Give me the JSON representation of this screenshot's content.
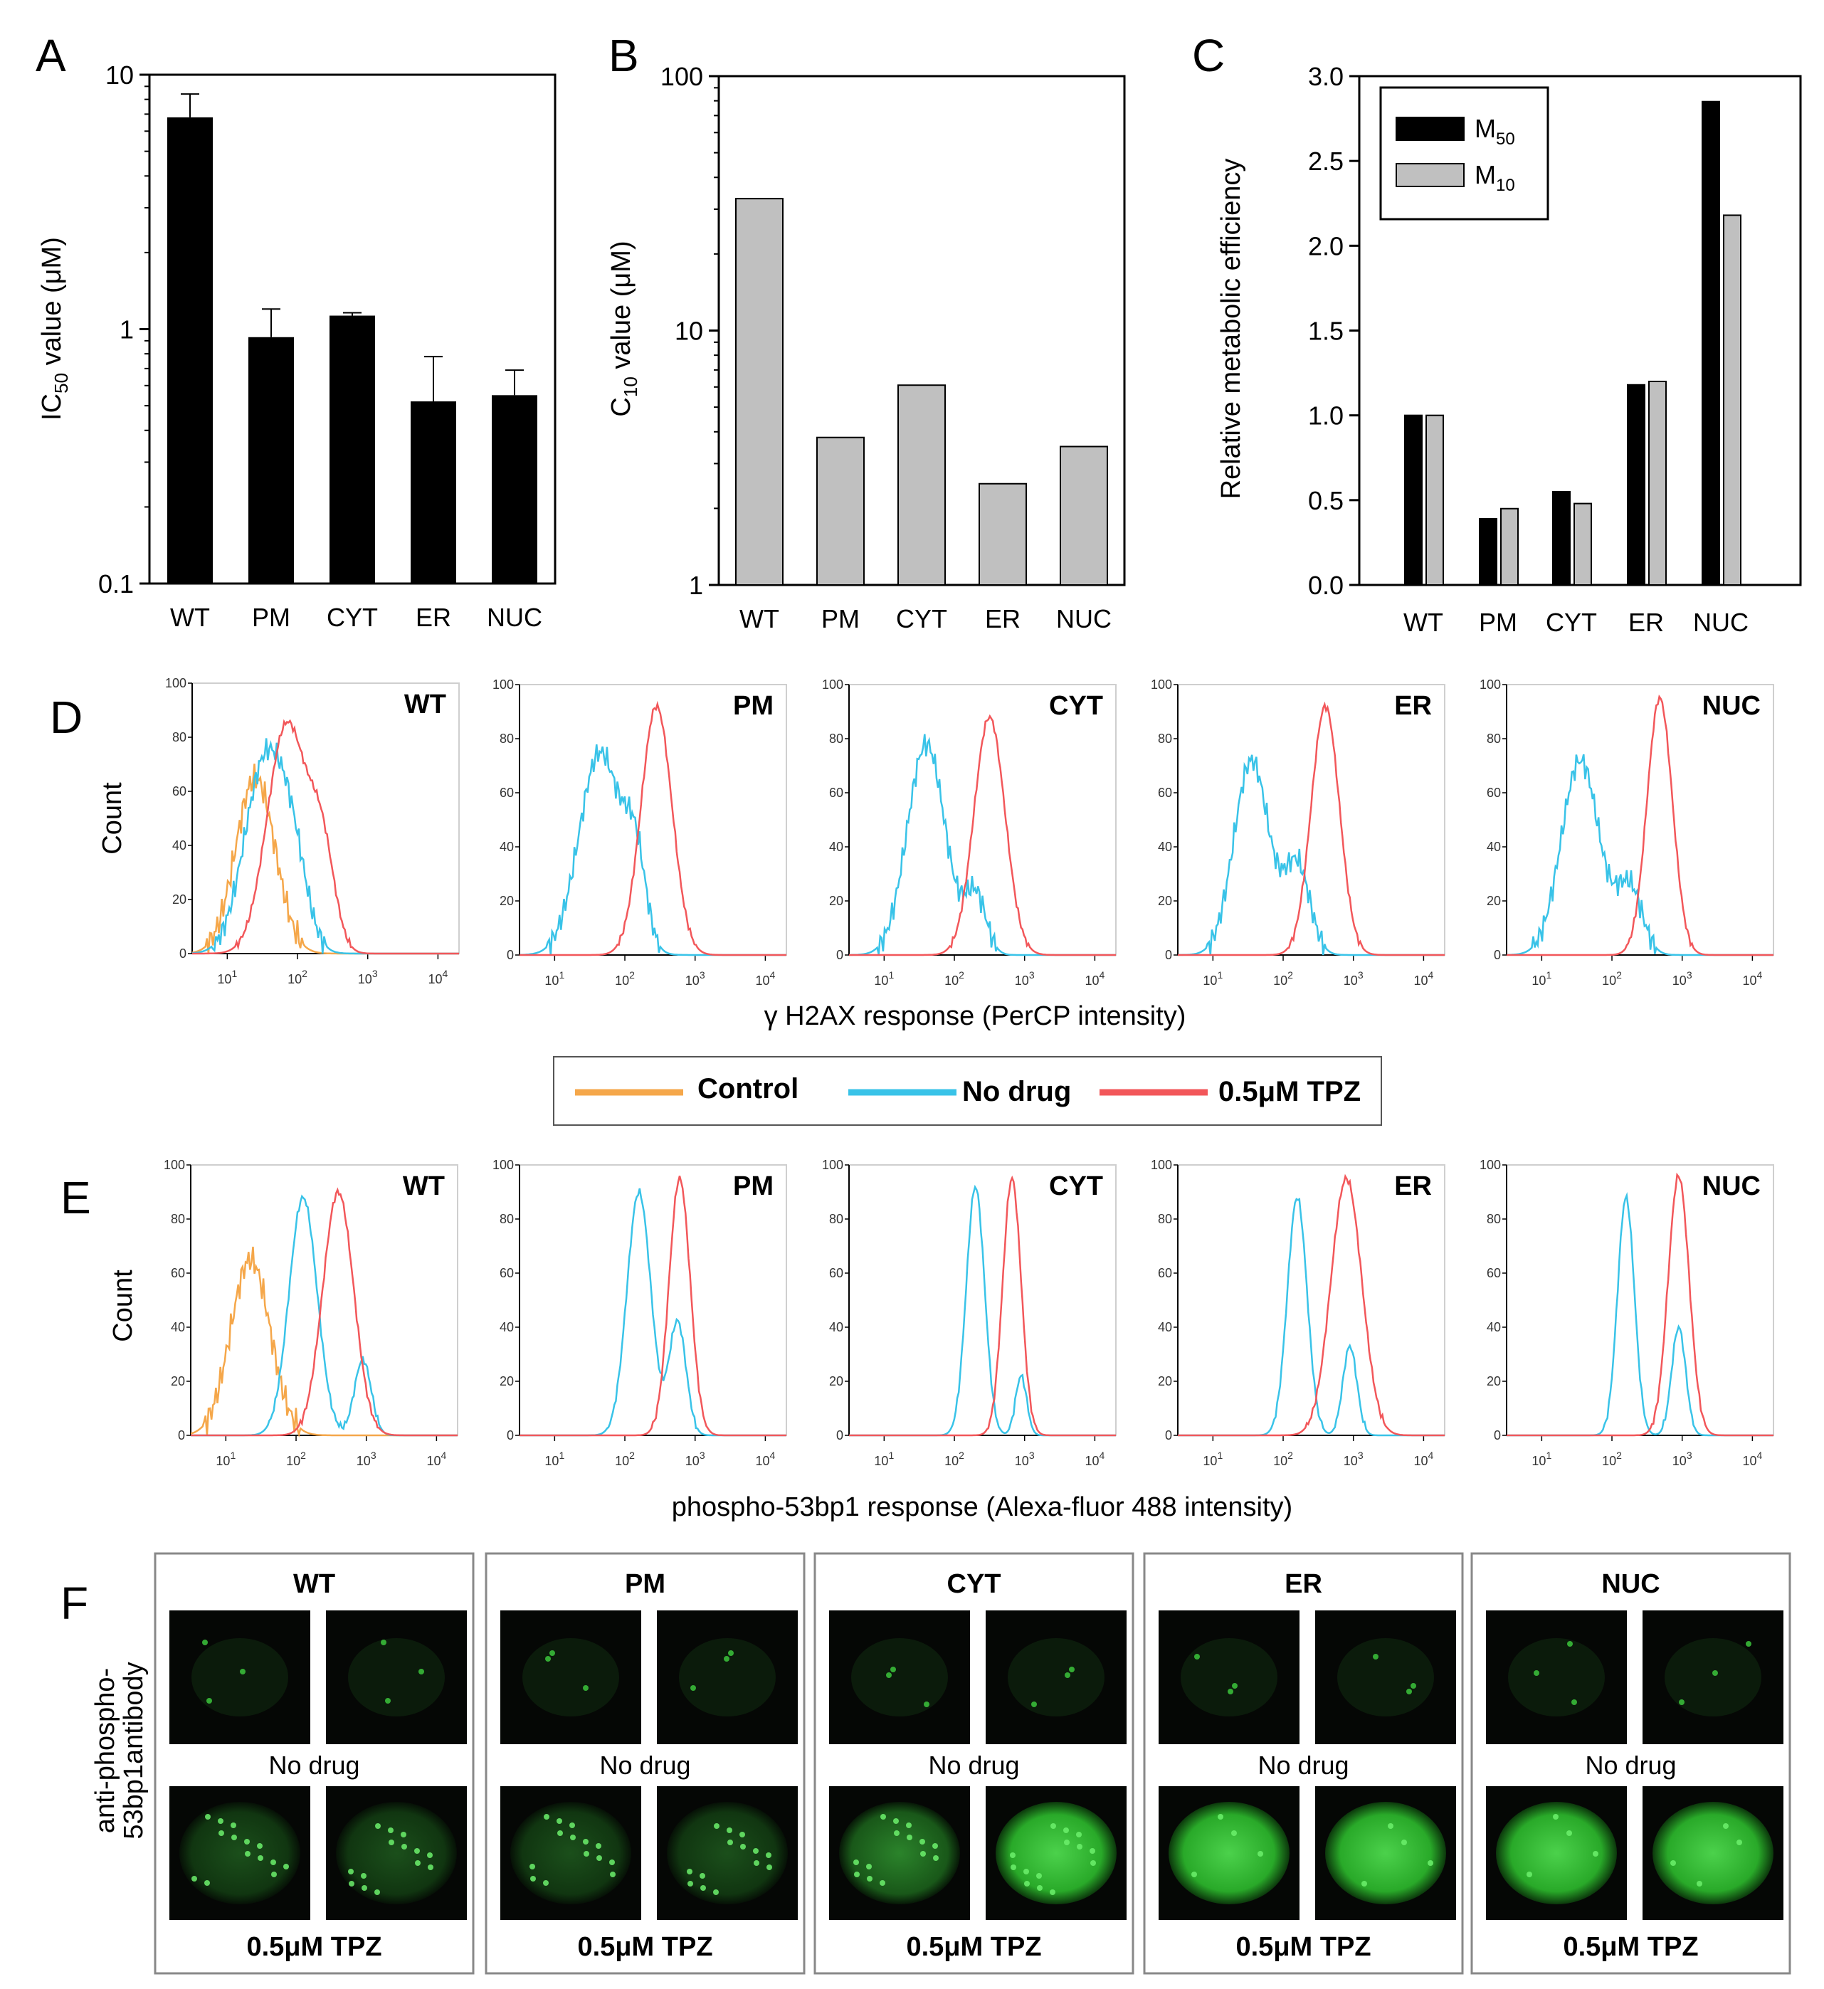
{
  "panel_labels": [
    "A",
    "B",
    "C",
    "D",
    "E",
    "F"
  ],
  "chart_data": [
    {
      "id": "A",
      "type": "bar",
      "scale": "log",
      "categories": [
        "WT",
        "PM",
        "CYT",
        "ER",
        "NUC"
      ],
      "values": [
        6.8,
        0.93,
        1.13,
        0.52,
        0.55
      ],
      "errors": [
        8.4,
        1.2,
        1.16,
        0.78,
        0.69
      ],
      "ylabel_main": "IC",
      "ylabel_sub": "50",
      "ylabel_rest": " value (μM)",
      "yticks": [
        "0.1",
        "1",
        "10"
      ],
      "ylim": [
        0.1,
        10
      ],
      "color": "#000000"
    },
    {
      "id": "B",
      "type": "bar",
      "scale": "log",
      "categories": [
        "WT",
        "PM",
        "CYT",
        "ER",
        "NUC"
      ],
      "values": [
        33,
        3.8,
        6.1,
        2.5,
        3.5
      ],
      "ylabel_main": "C",
      "ylabel_sub": "10",
      "ylabel_rest": " value (μM)",
      "yticks": [
        "1",
        "10",
        "100"
      ],
      "ylim": [
        1,
        100
      ],
      "color": "#c0c0c0"
    },
    {
      "id": "C",
      "type": "bar",
      "scale": "linear",
      "categories": [
        "WT",
        "PM",
        "CYT",
        "ER",
        "NUC"
      ],
      "series": [
        {
          "name_main": "M",
          "name_sub": "50",
          "values": [
            1.0,
            0.39,
            0.55,
            1.18,
            2.85
          ],
          "color": "#000000"
        },
        {
          "name_main": "M",
          "name_sub": "10",
          "values": [
            1.0,
            0.45,
            0.48,
            1.2,
            2.18
          ],
          "color": "#c0c0c0"
        }
      ],
      "ylabel": "Relative metabolic efficiency",
      "yticks": [
        "0.0",
        "0.5",
        "1.0",
        "1.5",
        "2.0",
        "2.5",
        "3.0"
      ],
      "ylim": [
        0,
        3.0
      ]
    },
    {
      "id": "D",
      "type": "histogram",
      "ylabel": "Count",
      "xlabel": "γ H2AX response (PerCP intensity)",
      "yticks": [
        "0",
        "20",
        "40",
        "60",
        "80",
        "100"
      ],
      "xtick_base": "10",
      "xtick_exps": [
        "1",
        "2",
        "3",
        "4"
      ],
      "panels": [
        {
          "title": "WT",
          "control_peak": 1.4,
          "control_height": 65,
          "nodrug_peaks": [
            [
              1.55,
              72,
              0.3
            ],
            [
              1.95,
              22,
              0.2
            ]
          ],
          "tpz_peaks": [
            [
              1.85,
              85,
              0.28
            ],
            [
              2.35,
              35,
              0.18
            ]
          ]
        },
        {
          "title": "PM",
          "nodrug_peaks": [
            [
              1.65,
              75,
              0.3
            ],
            [
              2.15,
              30,
              0.15
            ]
          ],
          "tpz_peaks": [
            [
              2.45,
              92,
              0.22
            ]
          ]
        },
        {
          "title": "CYT",
          "nodrug_peaks": [
            [
              1.6,
              78,
              0.27
            ],
            [
              2.3,
              22,
              0.15
            ]
          ],
          "tpz_peaks": [
            [
              2.5,
              88,
              0.22
            ]
          ]
        },
        {
          "title": "ER",
          "nodrug_peaks": [
            [
              1.55,
              72,
              0.25
            ],
            [
              2.2,
              33,
              0.18
            ]
          ],
          "tpz_peaks": [
            [
              2.6,
              92,
              0.2
            ]
          ]
        },
        {
          "title": "NUC",
          "nodrug_peaks": [
            [
              1.55,
              72,
              0.27
            ],
            [
              2.25,
              25,
              0.18
            ]
          ],
          "tpz_peaks": [
            [
              2.68,
              95,
              0.18
            ]
          ]
        }
      ]
    },
    {
      "id": "E",
      "type": "histogram",
      "ylabel": "Count",
      "xlabel": "phospho-53bp1 response (Alexa-fluor 488 intensity)",
      "yticks": [
        "0",
        "20",
        "40",
        "60",
        "80",
        "100"
      ],
      "xtick_base": "10",
      "xtick_exps": [
        "1",
        "2",
        "3",
        "4"
      ],
      "panels": [
        {
          "title": "WT",
          "control_peak": 1.35,
          "control_height": 65,
          "nodrug_peaks": [
            [
              2.1,
              88,
              0.2
            ],
            [
              2.95,
              28,
              0.12
            ]
          ],
          "tpz_peaks": [
            [
              2.6,
              90,
              0.22
            ]
          ]
        },
        {
          "title": "PM",
          "nodrug_peaks": [
            [
              2.2,
              90,
              0.17
            ],
            [
              2.75,
              42,
              0.12
            ]
          ],
          "tpz_peaks": [
            [
              2.78,
              95,
              0.15
            ]
          ]
        },
        {
          "title": "CYT",
          "nodrug_peaks": [
            [
              2.3,
              92,
              0.13
            ],
            [
              2.95,
              22,
              0.08
            ]
          ],
          "tpz_peaks": [
            [
              2.82,
              95,
              0.13
            ]
          ]
        },
        {
          "title": "ER",
          "nodrug_peaks": [
            [
              2.2,
              88,
              0.14
            ],
            [
              2.95,
              33,
              0.1
            ]
          ],
          "tpz_peaks": [
            [
              2.9,
              95,
              0.22
            ]
          ]
        },
        {
          "title": "NUC",
          "nodrug_peaks": [
            [
              2.2,
              88,
              0.12
            ],
            [
              2.95,
              40,
              0.1
            ]
          ],
          "tpz_peaks": [
            [
              2.95,
              96,
              0.15
            ]
          ]
        }
      ]
    }
  ],
  "legend": {
    "control": "Control",
    "nodrug": "No drug",
    "tpz": "0.5μM TPZ",
    "colors": {
      "control": "#f5a74a",
      "nodrug": "#39c3e8",
      "tpz": "#f2575a"
    }
  },
  "panel_f": {
    "ylabel_line1": "anti-phospho-",
    "ylabel_line2": "53bp1antibody",
    "groups": [
      {
        "title": "WT",
        "nodrug_label": "No drug",
        "tpz_label": "0.5μM TPZ"
      },
      {
        "title": "PM",
        "nodrug_label": "No drug",
        "tpz_label": "0.5μM TPZ"
      },
      {
        "title": "CYT",
        "nodrug_label": "No drug",
        "tpz_label": "0.5μM TPZ"
      },
      {
        "title": "ER",
        "nodrug_label": "No drug",
        "tpz_label": "0.5μM TPZ"
      },
      {
        "title": "NUC",
        "nodrug_label": "No drug",
        "tpz_label": "0.5μM TPZ"
      }
    ]
  }
}
